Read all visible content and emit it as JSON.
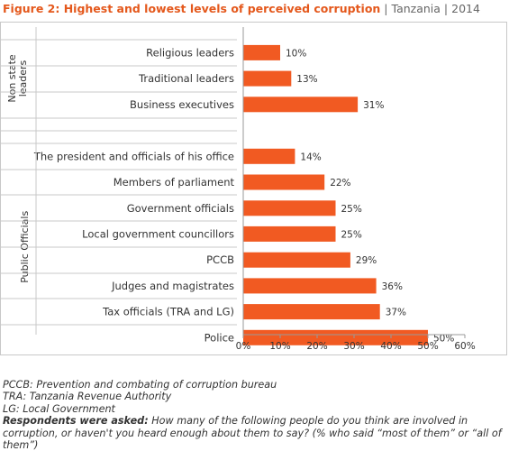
{
  "header": {
    "figure_label": "Figure 2: Highest and lowest levels of perceived corruption",
    "separator": "|",
    "country": "Tanzania",
    "year": "2014"
  },
  "colors": {
    "bar": "#f15a22",
    "accent": "#e4581c",
    "grid": "#d0d0d0",
    "divider": "#c8c8c8"
  },
  "chart_data": {
    "type": "bar",
    "orientation": "horizontal",
    "title": "Highest and lowest levels of perceived corruption",
    "xlim": [
      0,
      60
    ],
    "xticks": [
      "0%",
      "10%",
      "20%",
      "30%",
      "40%",
      "50%",
      "60%"
    ],
    "grid": false,
    "groups": [
      {
        "name": "Non state leaders",
        "categories": [
          "Religious leaders",
          "Traditional leaders",
          "Business executives"
        ],
        "values": [
          10,
          13,
          31
        ],
        "labels": [
          "10%",
          "13%",
          "31%"
        ]
      },
      {
        "name": "Public Officials",
        "categories": [
          "The president and officials of his office",
          "Members of parliament",
          "Government officials",
          "Local government councillors",
          "PCCB",
          "Judges and magistrates",
          "Tax officials (TRA and LG)",
          "Police"
        ],
        "values": [
          14,
          22,
          25,
          25,
          29,
          36,
          37,
          50
        ],
        "labels": [
          "14%",
          "22%",
          "25%",
          "25%",
          "29%",
          "36%",
          "37%",
          "50%"
        ]
      }
    ]
  },
  "notes": {
    "pccb": "PCCB: Prevention and combating of corruption bureau",
    "tra": "TRA: Tanzania Revenue Authority",
    "lg": "LG: Local Government",
    "question_label": "Respondents were asked:",
    "question_text": " How many of the following people do you think are involved in corruption, or haven't you heard enough about them to say? (% who said “most of them” or “all of them”)"
  }
}
